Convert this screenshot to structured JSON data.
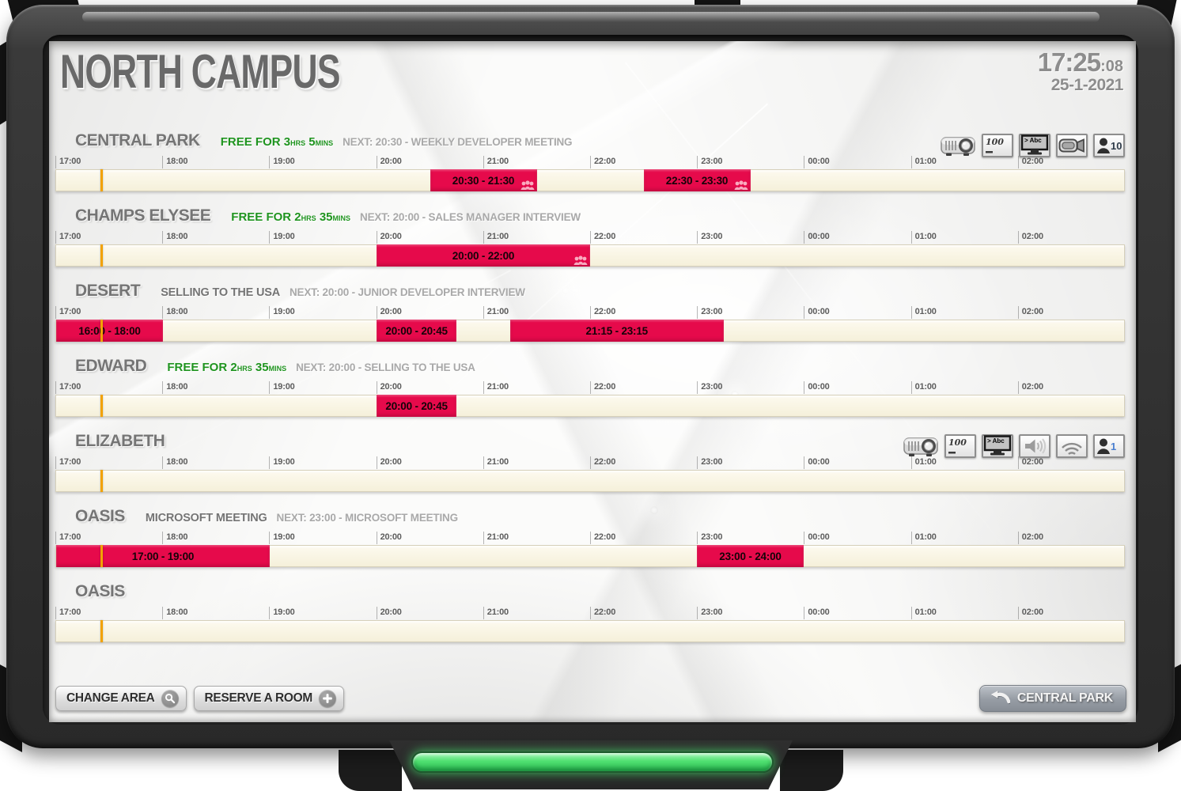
{
  "device": {
    "led_color": "#4fe070",
    "frame_color": "#323232"
  },
  "header": {
    "title": "NORTH CAMPUS",
    "clock_time": "17:25",
    "clock_seconds": ":08",
    "date": "25-1-2021"
  },
  "timeline": {
    "window_start": "17:00",
    "window_end": "03:00",
    "tick_labels": [
      "17:00",
      "18:00",
      "19:00",
      "20:00",
      "21:00",
      "22:00",
      "23:00",
      "00:00",
      "01:00",
      "02:00"
    ],
    "current_time": "17:25",
    "now_color": "#f2a202",
    "booking_color": "#e60a4b",
    "track_color": "#f8f4e2"
  },
  "rooms": [
    {
      "name": "CENTRAL PARK",
      "free": {
        "label": "FREE FOR",
        "hours": "3",
        "hours_unit": "HRS",
        "minutes": "5",
        "minutes_unit": "MINS"
      },
      "current_meeting": null,
      "next": "NEXT: 20:30 - WEEKLY DEVELOPER MEETING",
      "amenities": [
        {
          "icon": "projector-icon"
        },
        {
          "icon": "whiteboard-icon",
          "label": "100"
        },
        {
          "icon": "tv-icon",
          "label": "> Abc",
          "active": true
        },
        {
          "icon": "video-camera-icon"
        },
        {
          "icon": "capacity-icon",
          "label": "10",
          "label_color": "#2e3b49"
        }
      ],
      "bookings": [
        {
          "label": "20:30 - 21:30",
          "start": "20:30",
          "end": "21:30",
          "attendees": true
        },
        {
          "label": "22:30 - 23:30",
          "start": "22:30",
          "end": "23:30",
          "attendees": true
        }
      ]
    },
    {
      "name": "CHAMPS ELYSEE",
      "free": {
        "label": "FREE FOR",
        "hours": "2",
        "hours_unit": "HRS",
        "minutes": "35",
        "minutes_unit": "MINS"
      },
      "current_meeting": null,
      "next": "NEXT: 20:00 - SALES MANAGER INTERVIEW",
      "amenities": [],
      "bookings": [
        {
          "label": "20:00 - 22:00",
          "start": "20:00",
          "end": "22:00",
          "attendees": true
        }
      ]
    },
    {
      "name": "DESERT",
      "free": null,
      "current_meeting": "SELLING TO THE USA",
      "next": "NEXT: 20:00 - JUNIOR DEVELOPER INTERVIEW",
      "amenities": [],
      "bookings": [
        {
          "label": "16:00 - 18:00",
          "start": "16:00",
          "end": "18:00",
          "attendees": false
        },
        {
          "label": "20:00 - 20:45",
          "start": "20:00",
          "end": "20:45",
          "attendees": false
        },
        {
          "label": "21:15 - 23:15",
          "start": "21:15",
          "end": "23:15",
          "attendees": false
        }
      ]
    },
    {
      "name": "EDWARD",
      "free": {
        "label": "FREE FOR",
        "hours": "2",
        "hours_unit": "HRS",
        "minutes": "35",
        "minutes_unit": "MINS"
      },
      "current_meeting": null,
      "next": "NEXT: 20:00 - SELLING TO THE USA",
      "amenities": [],
      "bookings": [
        {
          "label": "20:00 - 20:45",
          "start": "20:00",
          "end": "20:45",
          "attendees": false
        }
      ]
    },
    {
      "name": "ELIZABETH",
      "free": null,
      "current_meeting": null,
      "next": null,
      "amenities": [
        {
          "icon": "projector-icon"
        },
        {
          "icon": "whiteboard-icon",
          "label": "100"
        },
        {
          "icon": "tv-icon",
          "label": "> Abc",
          "active": true
        },
        {
          "icon": "speaker-icon"
        },
        {
          "icon": "wifi-icon"
        },
        {
          "icon": "capacity-icon",
          "label": "1",
          "label_color": "#4a7fd0"
        }
      ],
      "bookings": []
    },
    {
      "name": "OASIS",
      "free": null,
      "current_meeting": "MICROSOFT MEETING",
      "next": "NEXT: 23:00 - MICROSOFT MEETING",
      "amenities": [],
      "bookings": [
        {
          "label": "17:00 - 19:00",
          "start": "17:00",
          "end": "19:00",
          "attendees": false
        },
        {
          "label": "23:00 - 24:00",
          "start": "23:00",
          "end": "24:00",
          "attendees": false
        }
      ]
    },
    {
      "name": "OASIS",
      "free": null,
      "current_meeting": null,
      "next": null,
      "amenities": [],
      "bookings": []
    }
  ],
  "footer": {
    "change_area_label": "CHANGE AREA",
    "reserve_room_label": "RESERVE A ROOM",
    "selected_room_label": "CENTRAL PARK"
  }
}
